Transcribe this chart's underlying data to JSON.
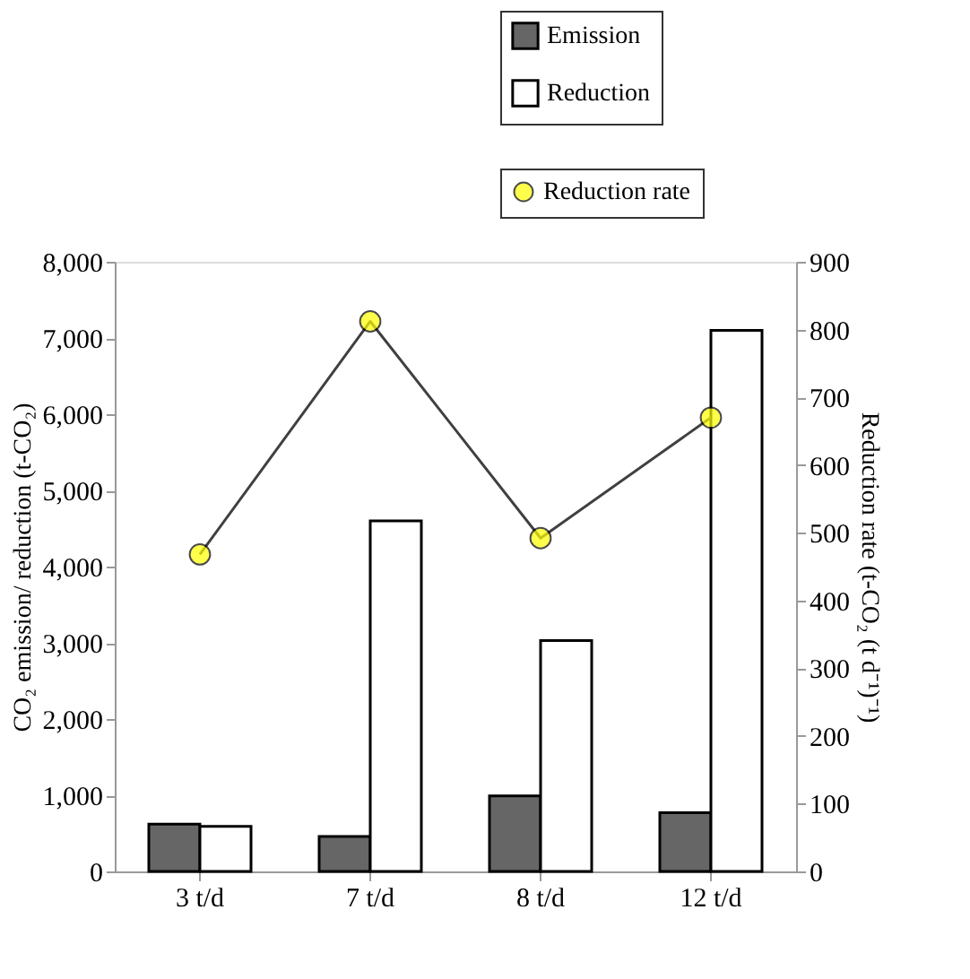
{
  "chart_data": {
    "type": "bar",
    "categories": [
      "3 t/d",
      "7 t/d",
      "8 t/d",
      "12 t/d"
    ],
    "series": [
      {
        "name": "Emission",
        "color": "#666666",
        "values": [
          620,
          460,
          990,
          770
        ]
      },
      {
        "name": "Reduction",
        "color": "#ffffff",
        "values": [
          590,
          4600,
          3030,
          7100
        ]
      },
      {
        "name": "Reduction rate",
        "type": "line",
        "axis": "y2",
        "color": "#ffff00",
        "marker": "circle",
        "values": [
          468,
          812,
          492,
          670
        ]
      }
    ],
    "ylabel": "CO₂ emission/ reduction (t-CO₂)",
    "y2label": "Reduction rate (t-CO₂ (t d⁻¹)⁻¹)",
    "ylim": [
      0,
      8000
    ],
    "yticks": [
      {
        "value": 0,
        "label": "0"
      },
      {
        "value": 1000,
        "label": "1,000"
      },
      {
        "value": 2000,
        "label": "2,000"
      },
      {
        "value": 3000,
        "label": "3,000"
      },
      {
        "value": 4000,
        "label": "4,000"
      },
      {
        "value": 5000,
        "label": "5,000"
      },
      {
        "value": 6000,
        "label": "6,000"
      },
      {
        "value": 7000,
        "label": "7,000"
      },
      {
        "value": 8000,
        "label": "8,000"
      }
    ],
    "y2lim": [
      0,
      900
    ],
    "y2ticks": [
      0,
      100,
      200,
      300,
      400,
      500,
      600,
      700,
      800,
      900
    ],
    "legend": "top right",
    "grid": false
  }
}
